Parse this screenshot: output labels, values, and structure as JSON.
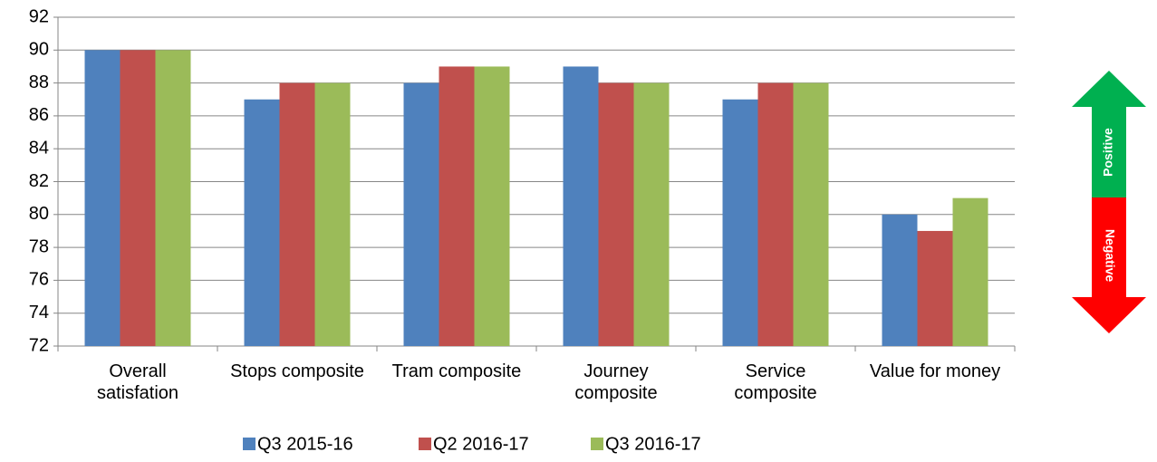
{
  "chart_data": {
    "type": "bar",
    "categories": [
      "Overall satisfation",
      "Stops composite",
      "Tram composite",
      "Journey composite",
      "Service composite",
      "Value for money"
    ],
    "series": [
      {
        "name": "Q3 2015-16",
        "color": "#4f81bd",
        "values": [
          90,
          87,
          88,
          89,
          87,
          80
        ]
      },
      {
        "name": "Q2 2016-17",
        "color": "#c0504d",
        "values": [
          90,
          88,
          89,
          88,
          88,
          79
        ]
      },
      {
        "name": "Q3 2016-17",
        "color": "#9bbb59",
        "values": [
          90,
          88,
          89,
          88,
          88,
          81
        ]
      }
    ],
    "ylim": [
      72,
      92
    ],
    "yticks": [
      72,
      74,
      76,
      78,
      80,
      82,
      84,
      86,
      88,
      90,
      92
    ],
    "grid": true,
    "legend": "bottom",
    "annotations": [
      "Positive",
      "Negative"
    ]
  }
}
